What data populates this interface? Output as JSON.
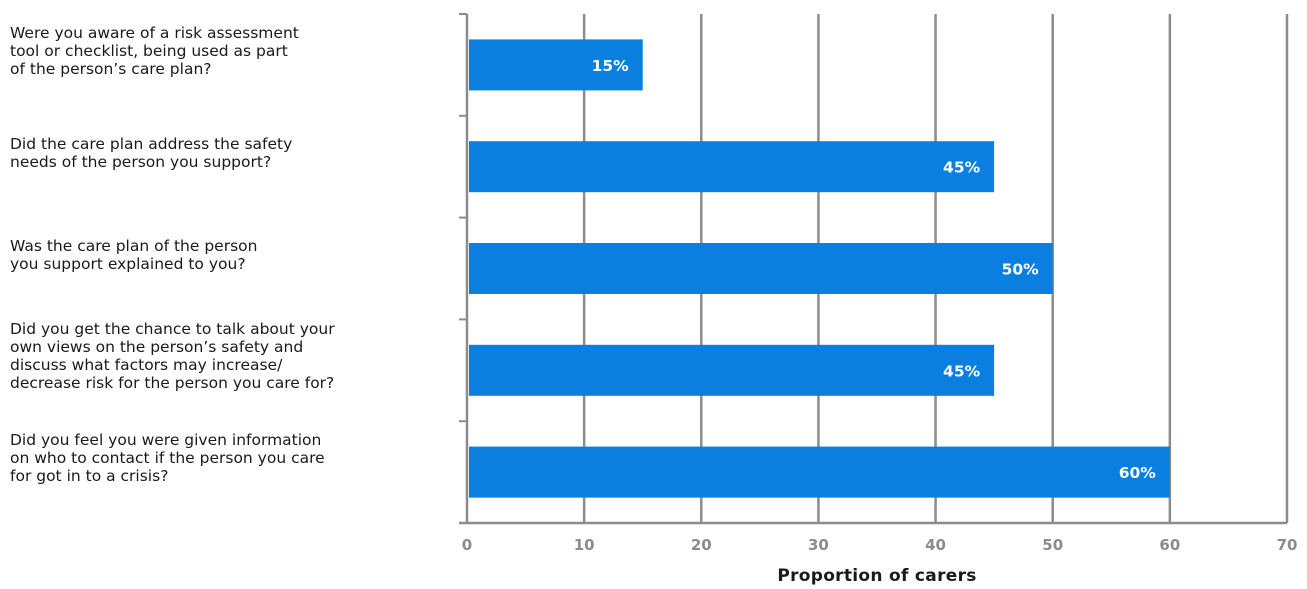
{
  "chart_data": {
    "type": "bar",
    "orientation": "horizontal",
    "categories": [
      "Were you aware of a risk assessment\ntool or checklist, being used as part\nof the person’s care plan?",
      "Did the care plan address the safety\nneeds of the person you support?",
      "Was the care plan of the person\nyou support explained to you?",
      "Did you get the chance to talk about your\nown views on the person’s safety and\ndiscuss what factors may increase/\ndecrease risk for the person you care for?",
      "Did you feel you were given information\non who to contact if the person you care\nfor got in to a crisis?"
    ],
    "values": [
      15,
      45,
      50,
      45,
      60
    ],
    "data_labels": [
      "15%",
      "45%",
      "50%",
      "45%",
      "60%"
    ],
    "xlabel": "Proportion of carers",
    "xlim": [
      0,
      70
    ],
    "xticks": [
      "0",
      "10",
      "20",
      "30",
      "40",
      "50",
      "60",
      "70"
    ],
    "grid": "vertical",
    "colors": {
      "bar": "#0a7fe0",
      "grid": "#8c8c8c",
      "tick_label": "#8c8c8c",
      "bar_label": "#ffffff"
    }
  }
}
